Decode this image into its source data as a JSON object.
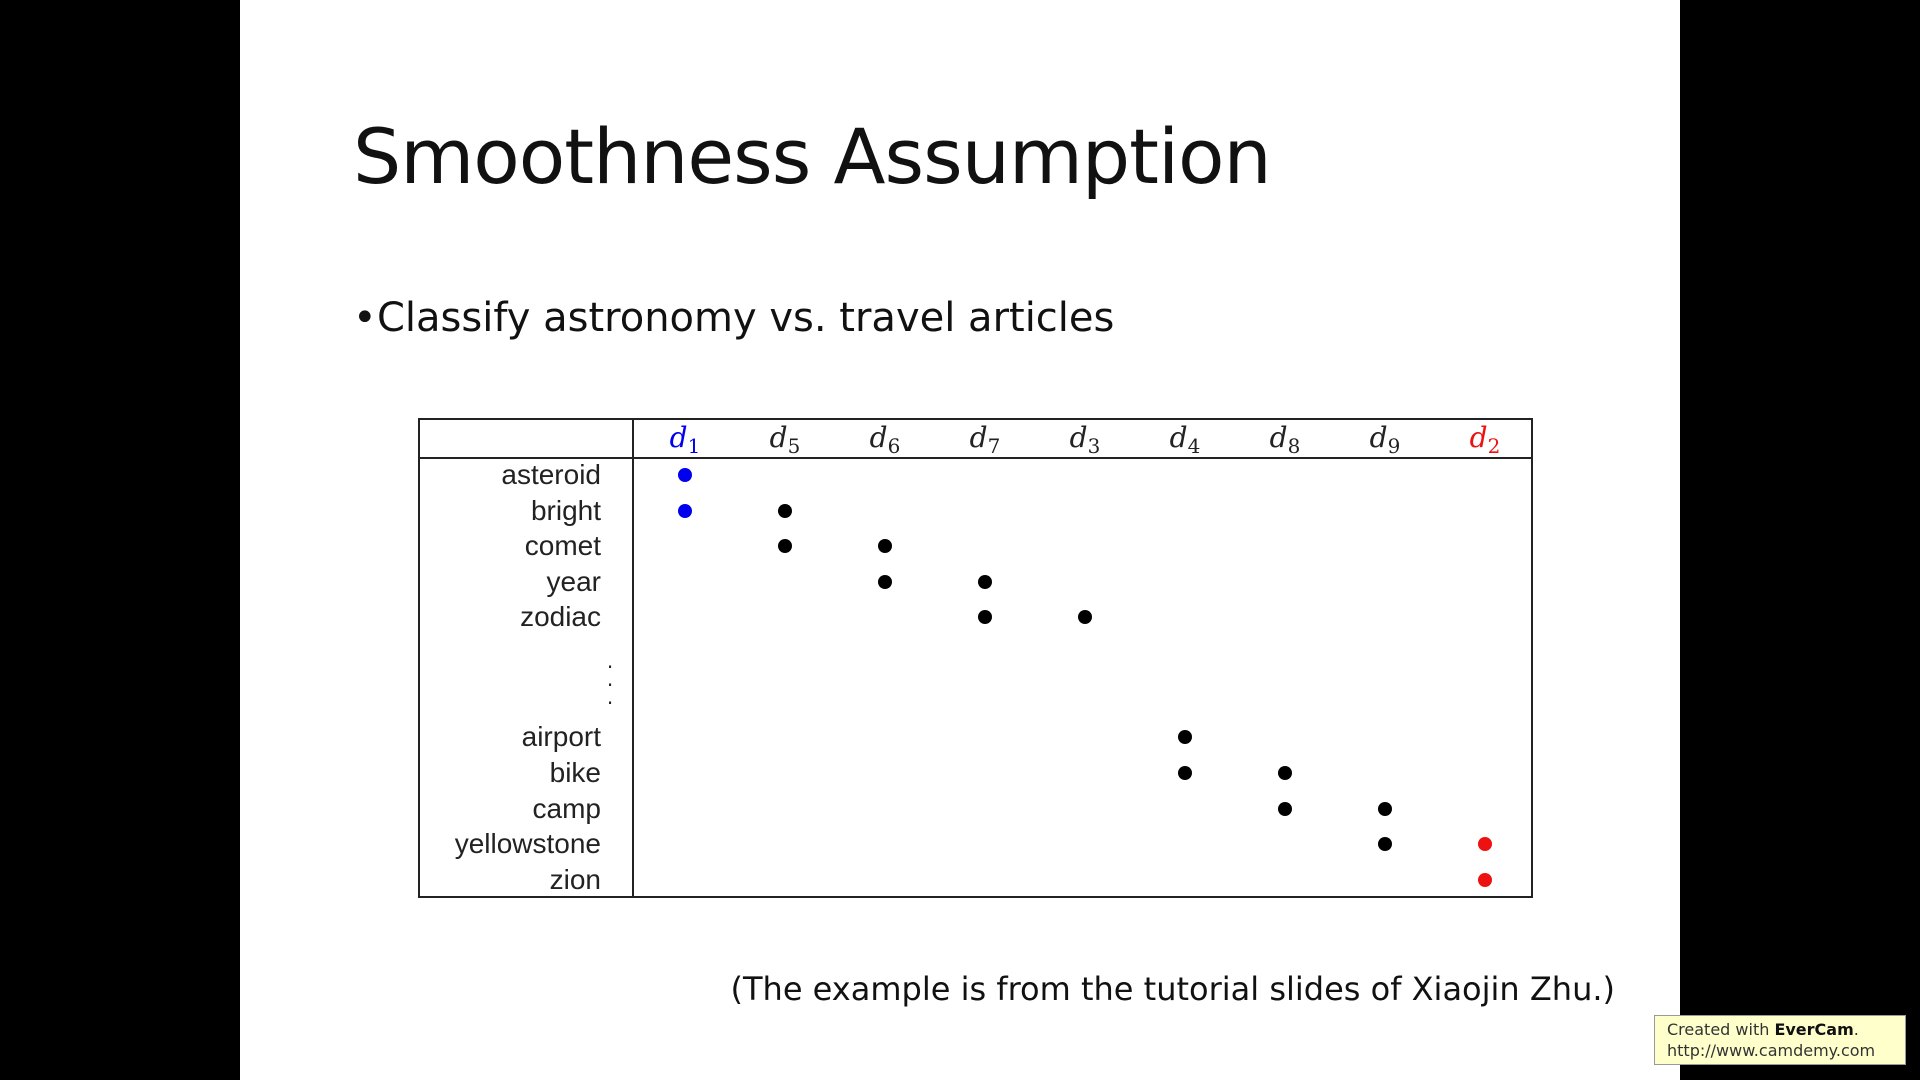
{
  "slide": {
    "title": "Smoothness Assumption",
    "bullet": "Classify astronomy vs. travel articles",
    "footnote": "(The example is from the tutorial slides of Xiaojin Zhu.)"
  },
  "watermark": {
    "line1_prefix": "Created with ",
    "brand": "EverCam",
    "line1_suffix": ".",
    "url": "http://www.camdemy.com"
  },
  "colors": {
    "labeled_astronomy": "#0000ee",
    "labeled_travel": "#ee1111",
    "unlabeled": "#000000"
  },
  "table": {
    "columns": [
      {
        "symbol": "d",
        "sub": "1",
        "class": "astronomy"
      },
      {
        "symbol": "d",
        "sub": "5",
        "class": "unlabeled"
      },
      {
        "symbol": "d",
        "sub": "6",
        "class": "unlabeled"
      },
      {
        "symbol": "d",
        "sub": "7",
        "class": "unlabeled"
      },
      {
        "symbol": "d",
        "sub": "3",
        "class": "unlabeled"
      },
      {
        "symbol": "d",
        "sub": "4",
        "class": "unlabeled"
      },
      {
        "symbol": "d",
        "sub": "8",
        "class": "unlabeled"
      },
      {
        "symbol": "d",
        "sub": "9",
        "class": "unlabeled"
      },
      {
        "symbol": "d",
        "sub": "2",
        "class": "travel"
      }
    ],
    "rows": [
      {
        "word": "asteroid",
        "docs": [
          0
        ]
      },
      {
        "word": "bright",
        "docs": [
          0,
          1
        ]
      },
      {
        "word": "comet",
        "docs": [
          1,
          2
        ]
      },
      {
        "word": "year",
        "docs": [
          2,
          3
        ]
      },
      {
        "word": "zodiac",
        "docs": [
          3,
          4
        ]
      },
      {
        "word": "airport",
        "docs": [
          5
        ]
      },
      {
        "word": "bike",
        "docs": [
          5,
          6
        ]
      },
      {
        "word": "camp",
        "docs": [
          6,
          7
        ]
      },
      {
        "word": "yellowstone",
        "docs": [
          7,
          8
        ]
      },
      {
        "word": "zion",
        "docs": [
          8
        ]
      }
    ]
  }
}
